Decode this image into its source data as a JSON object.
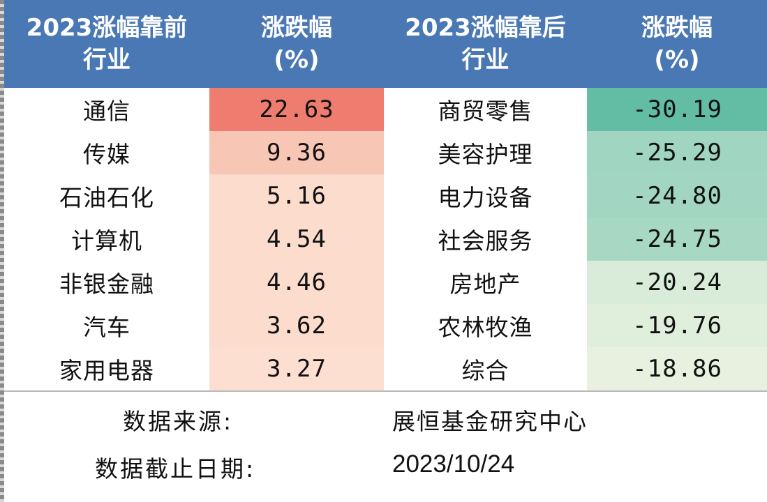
{
  "header": {
    "col1_line1": "2023涨幅靠前",
    "col1_line2": "行业",
    "col2_line1": "涨跌幅",
    "col2_line2": "(%)",
    "col3_line1": "2023涨幅靠后",
    "col3_line2": "行业",
    "col4_line1": "涨跌幅",
    "col4_line2": "(%)"
  },
  "rows": [
    {
      "top_industry": "通信",
      "top_change": "22.63",
      "bottom_industry": "商贸零售",
      "bottom_change": "-30.19"
    },
    {
      "top_industry": "传媒",
      "top_change": "9.36",
      "bottom_industry": "美容护理",
      "bottom_change": "-25.29"
    },
    {
      "top_industry": "石油石化",
      "top_change": "5.16",
      "bottom_industry": "电力设备",
      "bottom_change": "-24.80"
    },
    {
      "top_industry": "计算机",
      "top_change": "4.54",
      "bottom_industry": "社会服务",
      "bottom_change": "-24.75"
    },
    {
      "top_industry": "非银金融",
      "top_change": "4.46",
      "bottom_industry": "房地产",
      "bottom_change": "-20.24"
    },
    {
      "top_industry": "汽车",
      "top_change": "3.62",
      "bottom_industry": "农林牧渔",
      "bottom_change": "-19.76"
    },
    {
      "top_industry": "家用电器",
      "top_change": "3.27",
      "bottom_industry": "综合",
      "bottom_change": "-18.86"
    }
  ],
  "footer": {
    "source_label": "数据来源:",
    "source_value": "展恒基金研究中心",
    "date_label": "数据截止日期:",
    "date_value": "2023/10/24"
  },
  "colors": {
    "header_bg": "#4a78b5",
    "up_cells": [
      "#ef7d6f",
      "#f8c6b5",
      "#fbdccd",
      "#fbdccd",
      "#fbdccd",
      "#fbdccd",
      "#fcdfd1"
    ],
    "down_cells": [
      "#63bda5",
      "#9fd5c1",
      "#a2d6c2",
      "#a6d8c4",
      "#d9ecd9",
      "#e0efdc",
      "#e8f1df"
    ]
  }
}
